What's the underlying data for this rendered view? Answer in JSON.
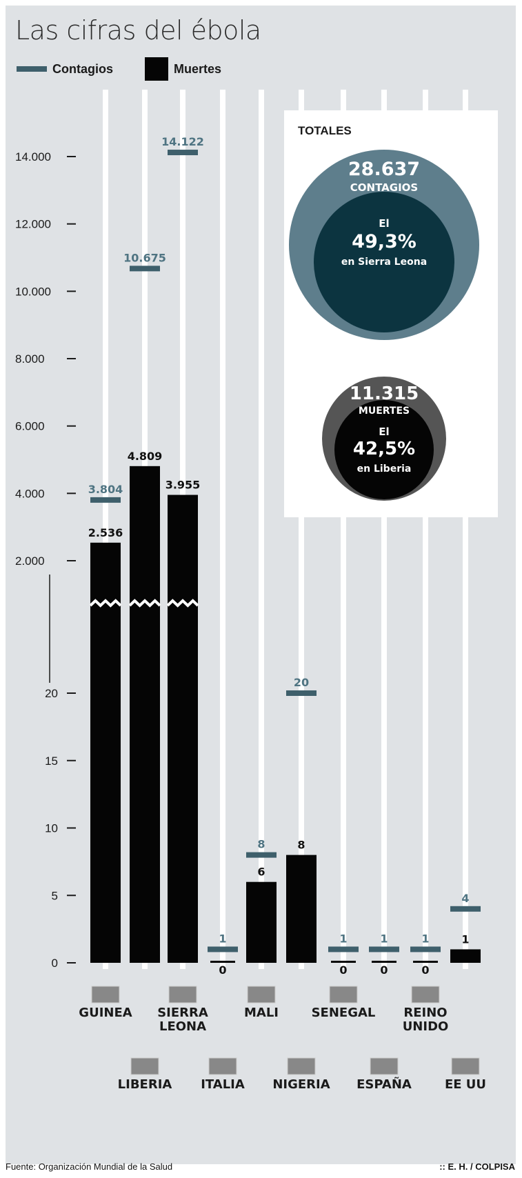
{
  "title": "Las cifras del ébola",
  "legend": {
    "contagios": "Contagios",
    "muertes": "Muertes"
  },
  "colors": {
    "contagios": "#3e5f6b",
    "muertes": "#050505",
    "background": "#dfe2e5",
    "outer_circle": "#5e7e8c",
    "inner_circle": "#0c3440",
    "deaths_outer": "#555555",
    "deaths_inner": "#050505"
  },
  "totals": {
    "heading": "TOTALES",
    "contagios_value": "28.637",
    "contagios_label": "CONTAGIOS",
    "contagios_el": "El",
    "contagios_pct": "49,3%",
    "contagios_where": "en Sierra Leona",
    "muertes_value": "11.315",
    "muertes_label": "MUERTES",
    "muertes_el": "El",
    "muertes_pct": "42,5%",
    "muertes_where": "en Liberia"
  },
  "source": "Fuente: Organización Mundial de la Salud",
  "credit": ":: E. H. / COLPISA",
  "chart_data": {
    "type": "bar",
    "title": "Las cifras del ébola",
    "axis_break": "broken y-axis: 0–20 (lower) and 2.000–14.000 (upper)",
    "y_ticks_upper": [
      "14.000",
      "12.000",
      "10.000",
      "8.000",
      "6.000",
      "4.000",
      "2.000"
    ],
    "y_ticks_lower": [
      "20",
      "15",
      "10",
      "5",
      "0"
    ],
    "countries": [
      {
        "name": "GUINEA",
        "contagios": 3804,
        "contagios_label": "3.804",
        "muertes": 2536,
        "muertes_label": "2.536"
      },
      {
        "name": "LIBERIA",
        "contagios": 10675,
        "contagios_label": "10.675",
        "muertes": 4809,
        "muertes_label": "4.809"
      },
      {
        "name": "SIERRA LEONA",
        "contagios": 14122,
        "contagios_label": "14.122",
        "muertes": 3955,
        "muertes_label": "3.955"
      },
      {
        "name": "ITALIA",
        "contagios": 1,
        "contagios_label": "1",
        "muertes": 0,
        "muertes_label": "0"
      },
      {
        "name": "MALI",
        "contagios": 8,
        "contagios_label": "8",
        "muertes": 6,
        "muertes_label": "6"
      },
      {
        "name": "NIGERIA",
        "contagios": 20,
        "contagios_label": "20",
        "muertes": 8,
        "muertes_label": "8"
      },
      {
        "name": "SENEGAL",
        "contagios": 1,
        "contagios_label": "1",
        "muertes": 0,
        "muertes_label": "0"
      },
      {
        "name": "ESPAÑA",
        "contagios": 1,
        "contagios_label": "1",
        "muertes": 0,
        "muertes_label": "0"
      },
      {
        "name": "REINO UNIDO",
        "contagios": 1,
        "contagios_label": "1",
        "muertes": 0,
        "muertes_label": "0"
      },
      {
        "name": "EE UU",
        "contagios": 4,
        "contagios_label": "4",
        "muertes": 1,
        "muertes_label": "1"
      }
    ]
  }
}
